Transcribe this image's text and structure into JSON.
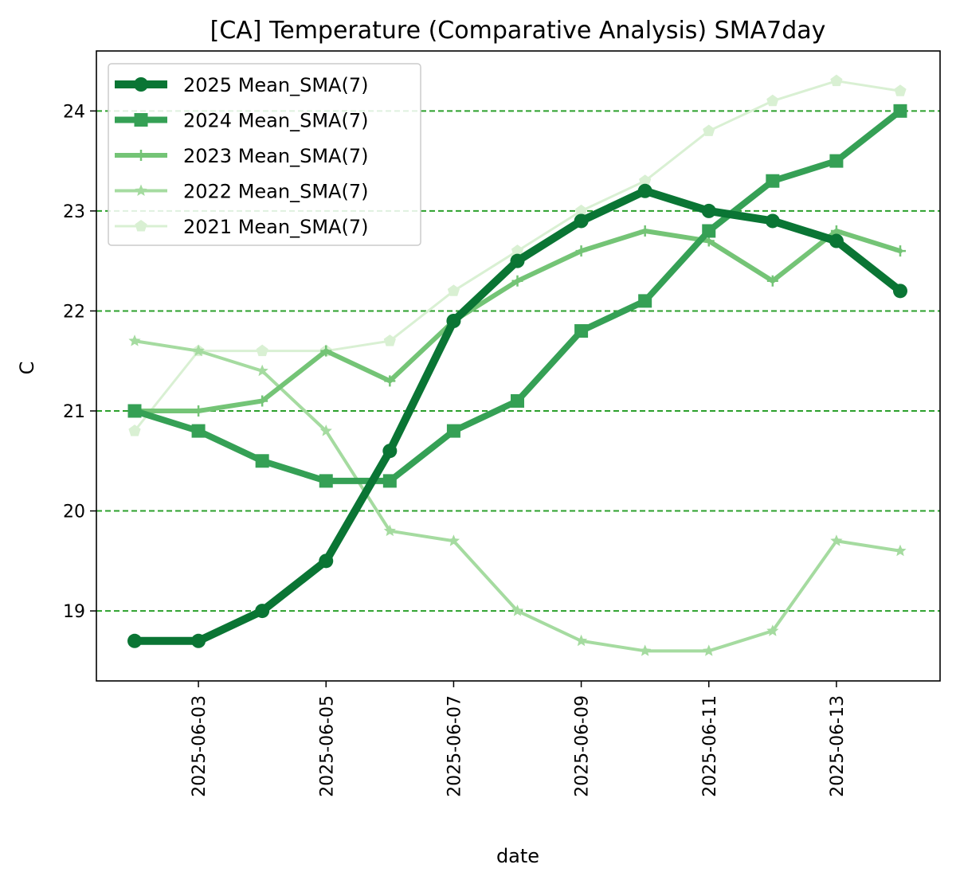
{
  "chart_data": {
    "type": "line",
    "title": "[CA] Temperature (Comparative Analysis) SMA7day",
    "xlabel": "date",
    "ylabel": "C",
    "x": [
      "2025-06-02",
      "2025-06-03",
      "2025-06-04",
      "2025-06-05",
      "2025-06-06",
      "2025-06-07",
      "2025-06-08",
      "2025-06-09",
      "2025-06-10",
      "2025-06-11",
      "2025-06-12",
      "2025-06-13",
      "2025-06-14"
    ],
    "x_ticks": [
      "2025-06-03",
      "2025-06-05",
      "2025-06-07",
      "2025-06-09",
      "2025-06-11",
      "2025-06-13"
    ],
    "y_ticks": [
      "19",
      "20",
      "21",
      "22",
      "23",
      "24"
    ],
    "ylim": [
      18.3,
      24.6
    ],
    "grid": "horizontal dashed",
    "grid_color": "#2ca02c",
    "legend_position": "upper-left",
    "series": [
      {
        "name": "2025 Mean_SMA(7)",
        "color": "#0a7534",
        "marker": "circle",
        "values": [
          18.7,
          18.7,
          19.0,
          19.5,
          20.6,
          21.9,
          22.5,
          22.9,
          23.2,
          23.0,
          22.9,
          22.7,
          22.2
        ]
      },
      {
        "name": "2024 Mean_SMA(7)",
        "color": "#35a055",
        "marker": "square",
        "values": [
          21.0,
          20.8,
          20.5,
          20.3,
          20.3,
          20.8,
          21.1,
          21.8,
          22.1,
          22.8,
          23.3,
          23.5,
          24.0
        ]
      },
      {
        "name": "2023 Mean_SMA(7)",
        "color": "#74c476",
        "marker": "plus",
        "values": [
          21.0,
          21.0,
          21.1,
          21.6,
          21.3,
          21.9,
          22.3,
          22.6,
          22.8,
          22.7,
          22.3,
          22.8,
          22.6
        ]
      },
      {
        "name": "2022 Mean_SMA(7)",
        "color": "#a5dba0",
        "marker": "star",
        "values": [
          21.7,
          21.6,
          21.4,
          20.8,
          19.8,
          19.7,
          19.0,
          18.7,
          18.6,
          18.6,
          18.8,
          19.7,
          19.6
        ]
      },
      {
        "name": "2021 Mean_SMA(7)",
        "color": "#d9f0d3",
        "marker": "pentagon",
        "values": [
          20.8,
          21.6,
          21.6,
          21.6,
          21.7,
          22.2,
          22.6,
          23.0,
          23.3,
          23.8,
          24.1,
          24.3,
          24.2
        ]
      }
    ]
  }
}
